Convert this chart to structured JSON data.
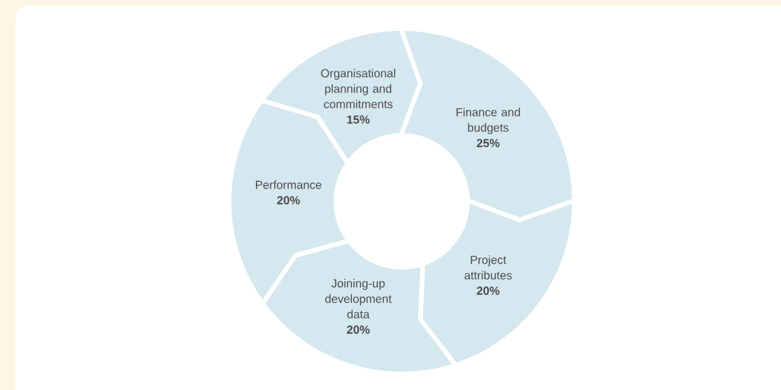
{
  "chart_data": {
    "type": "donut",
    "categories": [
      "Finance and budgets",
      "Project attributes",
      "Joining-up development data",
      "Performance",
      "Organisational planning and commitments"
    ],
    "values": [
      25,
      20,
      20,
      20,
      15
    ],
    "value_labels": [
      "25%",
      "20%",
      "20%",
      "20%",
      "15%"
    ],
    "colors": [
      "#d5e8ef",
      "#d5e8ef",
      "#d5e8ef",
      "#d5e8ef",
      "#d5e8ef"
    ]
  }
}
